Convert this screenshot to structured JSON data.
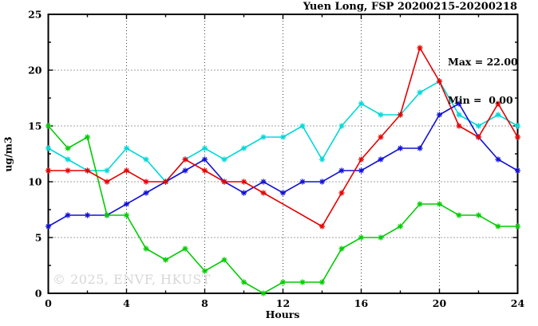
{
  "chart_data": {
    "type": "line",
    "title": "Yuen Long, FSP 20200215-20200218",
    "xlabel": "Hours",
    "ylabel": "ug/m3",
    "xlim": [
      0,
      24
    ],
    "ylim": [
      0,
      25
    ],
    "xticks": [
      0,
      4,
      8,
      12,
      16,
      20,
      24
    ],
    "yticks": [
      0,
      5,
      10,
      15,
      20,
      25
    ],
    "x_minor_ticks": [
      2,
      6,
      10,
      14,
      18,
      22
    ],
    "y_minor_ticks": [
      2.5,
      7.5,
      12.5,
      17.5,
      22.5
    ],
    "grid_x": [
      4,
      8,
      12,
      16,
      20
    ],
    "grid_y": [
      5,
      10,
      15,
      20
    ],
    "legend_position": "none",
    "annotation": {
      "max_label": "Max = 22.00",
      "min_label": "Min =  0.00"
    },
    "watermark": "© 2025, ENVF, HKUST",
    "x": [
      0,
      1,
      2,
      3,
      4,
      5,
      6,
      7,
      8,
      9,
      10,
      11,
      12,
      13,
      14,
      15,
      16,
      17,
      18,
      19,
      20,
      21,
      22,
      23,
      24
    ],
    "series": [
      {
        "name": "cyan",
        "color": "#00d8d8",
        "values": [
          13,
          12,
          11,
          11,
          13,
          12,
          10,
          12,
          13,
          12,
          13,
          14,
          14,
          15,
          12,
          15,
          17,
          16,
          16,
          18,
          19,
          16,
          15,
          16,
          15
        ]
      },
      {
        "name": "blue",
        "color": "#1010d8",
        "values": [
          6,
          7,
          7,
          7,
          8,
          9,
          10,
          11,
          12,
          10,
          9,
          10,
          9,
          10,
          10,
          11,
          11,
          12,
          13,
          13,
          16,
          17,
          14,
          12,
          11
        ]
      },
      {
        "name": "green",
        "color": "#00cc00",
        "values": [
          15,
          13,
          14,
          7,
          7,
          4,
          3,
          4,
          2,
          3,
          1,
          0,
          1,
          1,
          1,
          4,
          5,
          5,
          6,
          8,
          8,
          7,
          7,
          6,
          6
        ]
      },
      {
        "name": "red",
        "color": "#e60000",
        "values": [
          11,
          11,
          11,
          10,
          11,
          10,
          10,
          12,
          11,
          10,
          10,
          9,
          null,
          null,
          6,
          9,
          12,
          14,
          16,
          22,
          19,
          15,
          14,
          17,
          14
        ]
      }
    ],
    "style": {
      "grid_color": "#444444",
      "border_color": "#000000",
      "tick_label_color": "#000000"
    }
  }
}
